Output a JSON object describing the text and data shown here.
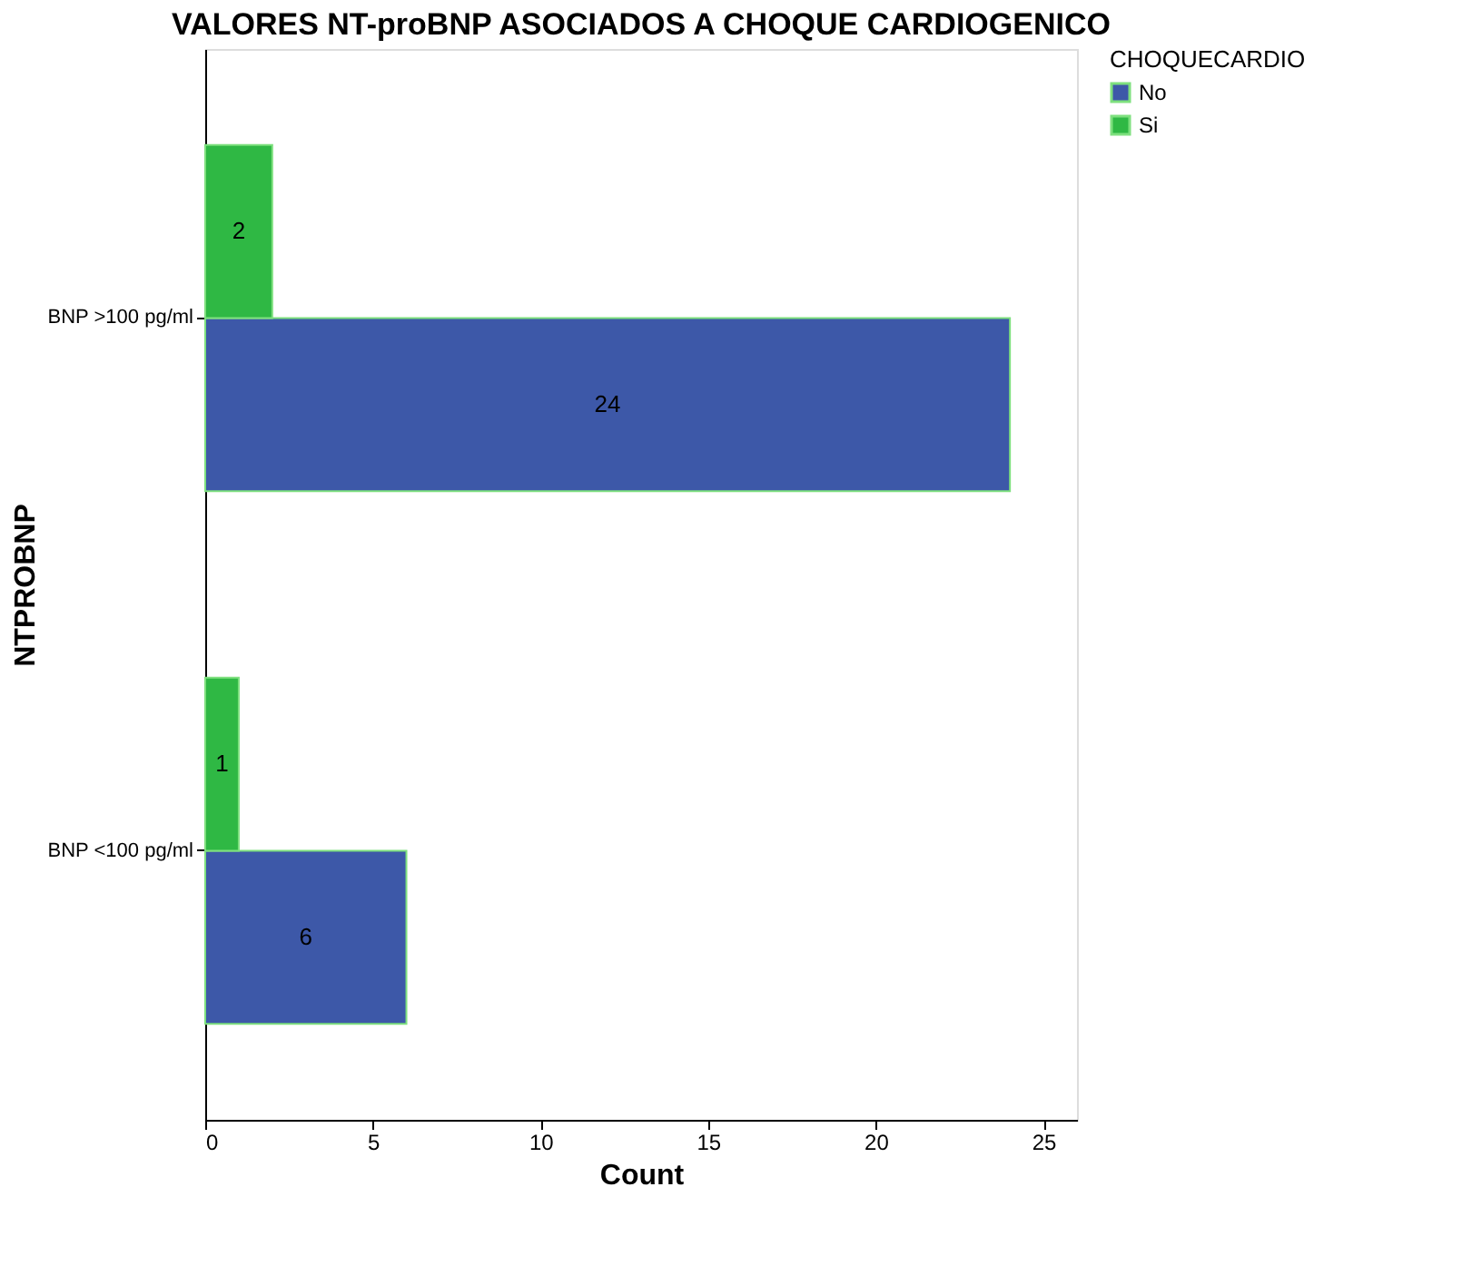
{
  "chart_data": {
    "type": "bar",
    "orientation": "horizontal",
    "title": "VALORES NT-proBNP ASOCIADOS A CHOQUE CARDIOGENICO",
    "xlabel": "Count",
    "ylabel": "NTPROBNP",
    "legend_title": "CHOQUECARDIO",
    "legend": "top right",
    "categories": [
      "BNP >100 pg/ml",
      "BNP <100 pg/ml"
    ],
    "series": [
      {
        "name": "No",
        "color": "#3d58a8",
        "values": [
          24,
          6
        ]
      },
      {
        "name": "Si",
        "color": "#2fb844",
        "values": [
          2,
          1
        ]
      }
    ],
    "xlim": [
      0,
      26
    ],
    "xticks": [
      0,
      5,
      10,
      15,
      20,
      25
    ],
    "grid": false,
    "data_labels": true
  }
}
